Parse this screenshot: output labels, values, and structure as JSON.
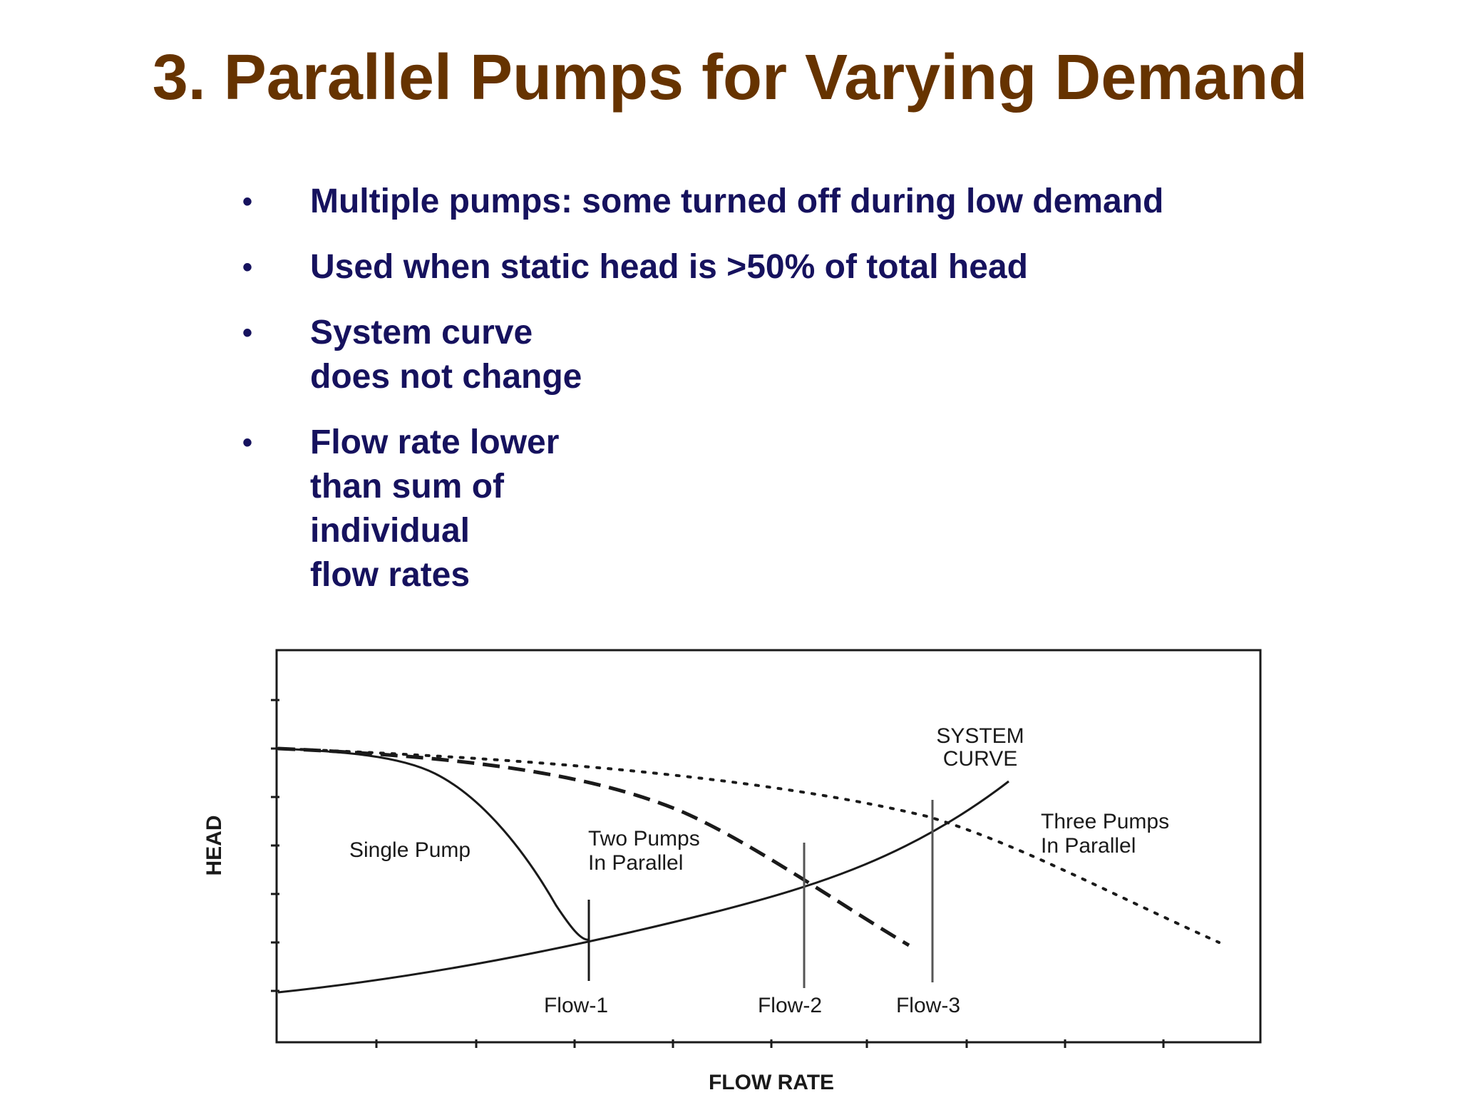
{
  "title": "3. Parallel Pumps for Varying Demand",
  "bullets": [
    {
      "text": "Multiple pumps: some turned off during low demand"
    },
    {
      "text": "Used when static head is >50% of total head"
    },
    {
      "text": "System curve\ndoes not change"
    },
    {
      "text": "Flow rate lower\nthan sum of\nindividual\nflow rates"
    }
  ],
  "bullet_symbol": "•",
  "diagram": {
    "ylabel": "HEAD",
    "xlabel": "FLOW RATE",
    "system_curve_label_line1": "SYSTEM",
    "system_curve_label_line2": "CURVE",
    "single_pump_label": "Single Pump",
    "two_pumps_label_line1": "Two Pumps",
    "two_pumps_label_line2": "In Parallel",
    "three_pumps_label_line1": "Three Pumps",
    "three_pumps_label_line2": "In Parallel",
    "flow_labels": [
      "Flow-1",
      "Flow-2",
      "Flow-3"
    ]
  },
  "colors": {
    "title": "#663300",
    "bullet_text": "#16125e",
    "diagram_ink": "#1a1a1a"
  }
}
